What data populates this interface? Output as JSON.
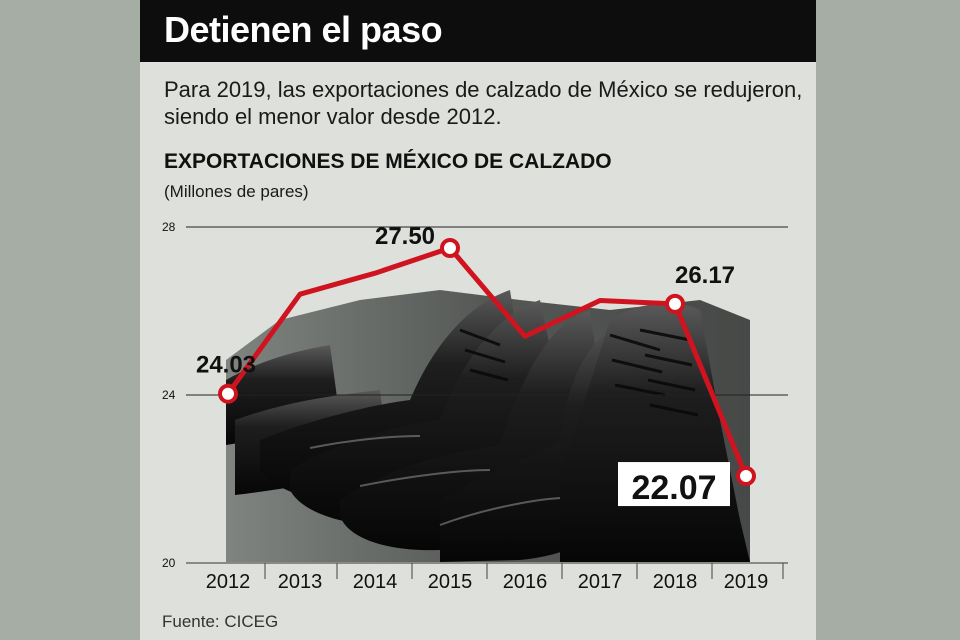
{
  "header": {
    "title": "Detienen el paso",
    "subtitle": "Para 2019, las exportaciones de calzado de México se redujeron, siendo el menor valor desde 2012."
  },
  "source": "Fuente: CICEG",
  "colors": {
    "line": "#d0141f",
    "title_bar": "#0d0d0d",
    "card": "#dde0db",
    "page": "#a6ada4"
  },
  "chart_data": {
    "type": "line",
    "title": "EXPORTACIONES DE MÉXICO DE CALZADO",
    "ylabel": "(Millones de pares)",
    "x": [
      "2012",
      "2013",
      "2014",
      "2015",
      "2016",
      "2017",
      "2018",
      "2019"
    ],
    "series": [
      {
        "values": [
          24.03,
          26.4,
          26.9,
          27.5,
          25.4,
          26.25,
          26.17,
          22.07
        ]
      }
    ],
    "labeled_points": [
      0,
      3,
      6,
      7
    ],
    "data_labels": [
      "24.03",
      "",
      "",
      "27.50",
      "",
      "",
      "26.17",
      "22.07"
    ],
    "ylim": [
      20,
      28
    ],
    "yticks": [
      20,
      24,
      28
    ],
    "grid": true,
    "background_image": "black-leather-boots-photo"
  }
}
